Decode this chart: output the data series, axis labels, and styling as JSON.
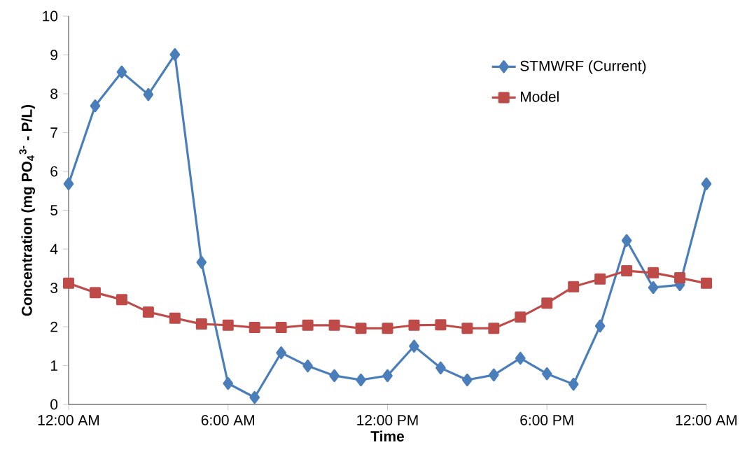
{
  "chart_data": {
    "type": "line",
    "xlabel": "Time",
    "ylabel": "Concentration (mg PO$_{4}$$^{3-}$ - P/L)",
    "x": [
      0,
      1,
      2,
      3,
      4,
      5,
      6,
      7,
      8,
      9,
      10,
      11,
      12,
      13,
      14,
      15,
      16,
      17,
      18,
      19,
      20,
      21,
      22,
      23,
      24
    ],
    "xlim": [
      0,
      24
    ],
    "xticks": [
      {
        "value": 0,
        "label": "12:00 AM"
      },
      {
        "value": 6,
        "label": "6:00 AM"
      },
      {
        "value": 12,
        "label": "12:00 PM"
      },
      {
        "value": 18,
        "label": "6:00 PM"
      },
      {
        "value": 24,
        "label": "12:00 AM"
      }
    ],
    "ylim": [
      0,
      10
    ],
    "yticks": [
      0,
      1,
      2,
      3,
      4,
      5,
      6,
      7,
      8,
      9,
      10
    ],
    "legend": "top right",
    "line_style": "solid",
    "series": [
      {
        "name": "STMWRF (Current)",
        "color": "#4a7ebb",
        "marker": "diamond",
        "values": [
          5.68,
          7.69,
          8.56,
          7.98,
          9.01,
          3.66,
          0.54,
          0.18,
          1.33,
          0.99,
          0.74,
          0.63,
          0.74,
          1.5,
          0.94,
          0.63,
          0.76,
          1.19,
          0.79,
          0.52,
          2.02,
          4.22,
          3.01,
          3.08,
          5.68
        ]
      },
      {
        "name": "Model",
        "color": "#be4b48",
        "marker": "square",
        "values": [
          3.12,
          2.88,
          2.7,
          2.38,
          2.22,
          2.07,
          2.04,
          1.98,
          1.98,
          2.04,
          2.04,
          1.96,
          1.96,
          2.04,
          2.05,
          1.96,
          1.96,
          2.25,
          2.61,
          3.03,
          3.23,
          3.44,
          3.39,
          3.26,
          3.12
        ]
      }
    ]
  }
}
